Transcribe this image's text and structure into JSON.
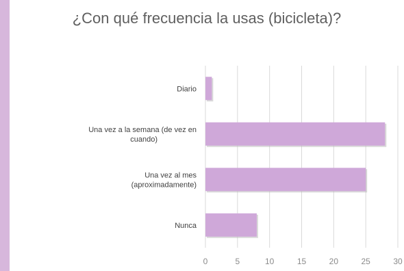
{
  "colors": {
    "frame": "#d7b7dc",
    "bar": "#cfa8d9",
    "bar_shadow": "#b9b9b9",
    "grid": "#d9d9d9",
    "text": "#404040"
  },
  "chart_data": {
    "type": "bar",
    "orientation": "horizontal",
    "title": "¿Con qué frecuencia la usas (bicicleta)?",
    "categories": [
      [
        "Diario"
      ],
      [
        "Una vez a la semana (de vez en",
        "cuando)"
      ],
      [
        "Una vez al mes",
        "(aproximadamente)"
      ],
      [
        "Nunca"
      ]
    ],
    "values": [
      1,
      28,
      25,
      8
    ],
    "xlim": [
      0,
      30
    ],
    "xticks": [
      0,
      5,
      10,
      15,
      20,
      25,
      30
    ],
    "grid": true,
    "legend": "none"
  }
}
